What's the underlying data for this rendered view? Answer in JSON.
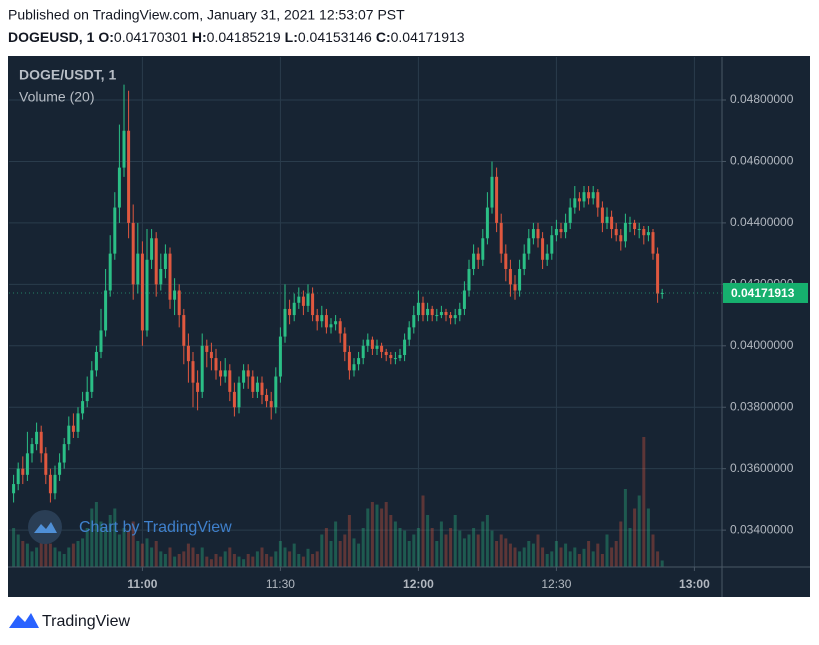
{
  "header": {
    "published": "Published on TradingView.com, January 31, 2021 12:53:07 PST",
    "symbol": "DOGEUSD, 1",
    "open_label": "O:",
    "high_label": "H:",
    "low_label": "L:",
    "close_label": "C:"
  },
  "footer": {
    "brand": "TradingView"
  },
  "chart_data": {
    "type": "candlestick",
    "symbol": "DOGE/USDT, 1",
    "volume_label": "Volume (20)",
    "watermark": "Chart by TradingView",
    "up_color": "#2bbf86",
    "down_color": "#e0583f",
    "grid": true,
    "ylim": [
      0.0328,
      0.0494
    ],
    "yticks": [
      {
        "value": 0.034,
        "label": "0.03400000"
      },
      {
        "value": 0.036,
        "label": "0.03600000"
      },
      {
        "value": 0.038,
        "label": "0.03800000"
      },
      {
        "value": 0.04,
        "label": "0.04000000"
      },
      {
        "value": 0.042,
        "label": "0.04200000"
      },
      {
        "value": 0.044,
        "label": "0.04400000"
      },
      {
        "value": 0.046,
        "label": "0.04600000"
      },
      {
        "value": 0.048,
        "label": "0.04800000"
      }
    ],
    "xlim": [
      "10:31",
      "13:06"
    ],
    "xticks": [
      "11:00",
      "11:30",
      "12:00",
      "12:30",
      "13:00"
    ],
    "x": [
      "10:32",
      "10:33",
      "10:34",
      "10:35",
      "10:36",
      "10:37",
      "10:38",
      "10:39",
      "10:40",
      "10:41",
      "10:42",
      "10:43",
      "10:44",
      "10:45",
      "10:46",
      "10:47",
      "10:48",
      "10:49",
      "10:50",
      "10:51",
      "10:52",
      "10:53",
      "10:54",
      "10:55",
      "10:56",
      "10:57",
      "10:58",
      "10:59",
      "11:00",
      "11:01",
      "11:02",
      "11:03",
      "11:04",
      "11:05",
      "11:06",
      "11:07",
      "11:08",
      "11:09",
      "11:10",
      "11:11",
      "11:12",
      "11:13",
      "11:14",
      "11:15",
      "11:16",
      "11:17",
      "11:18",
      "11:19",
      "11:20",
      "11:21",
      "11:22",
      "11:23",
      "11:24",
      "11:25",
      "11:26",
      "11:27",
      "11:28",
      "11:29",
      "11:30",
      "11:31",
      "11:32",
      "11:33",
      "11:34",
      "11:35",
      "11:36",
      "11:37",
      "11:38",
      "11:39",
      "11:40",
      "11:41",
      "11:42",
      "11:43",
      "11:44",
      "11:45",
      "11:46",
      "11:47",
      "11:48",
      "11:49",
      "11:50",
      "11:51",
      "11:52",
      "11:53",
      "11:54",
      "11:55",
      "11:56",
      "11:57",
      "11:58",
      "11:59",
      "12:00",
      "12:01",
      "12:02",
      "12:03",
      "12:04",
      "12:05",
      "12:06",
      "12:07",
      "12:08",
      "12:09",
      "12:10",
      "12:11",
      "12:12",
      "12:13",
      "12:14",
      "12:15",
      "12:16",
      "12:17",
      "12:18",
      "12:19",
      "12:20",
      "12:21",
      "12:22",
      "12:23",
      "12:24",
      "12:25",
      "12:26",
      "12:27",
      "12:28",
      "12:29",
      "12:30",
      "12:31",
      "12:32",
      "12:33",
      "12:34",
      "12:35",
      "12:36",
      "12:37",
      "12:38",
      "12:39",
      "12:40",
      "12:41",
      "12:42",
      "12:43",
      "12:44",
      "12:45",
      "12:46",
      "12:47",
      "12:48",
      "12:49",
      "12:50",
      "12:51",
      "12:52",
      "12:53"
    ],
    "open": [
      0.0352,
      0.0355,
      0.036,
      0.0358,
      0.0365,
      0.0368,
      0.0372,
      0.0365,
      0.0358,
      0.0352,
      0.0358,
      0.0362,
      0.0368,
      0.0374,
      0.0372,
      0.0378,
      0.0382,
      0.0385,
      0.0392,
      0.0398,
      0.0405,
      0.0418,
      0.043,
      0.0445,
      0.0458,
      0.047,
      0.044,
      0.042,
      0.043,
      0.0405,
      0.0428,
      0.0435,
      0.042,
      0.0425,
      0.043,
      0.0415,
      0.0418,
      0.041,
      0.04,
      0.0395,
      0.0388,
      0.0385,
      0.04,
      0.0398,
      0.0396,
      0.0392,
      0.039,
      0.0392,
      0.0385,
      0.038,
      0.0388,
      0.0392,
      0.039,
      0.0385,
      0.0388,
      0.0384,
      0.0382,
      0.038,
      0.039,
      0.0403,
      0.0412,
      0.041,
      0.0414,
      0.0416,
      0.0413,
      0.0417,
      0.041,
      0.0408,
      0.041,
      0.0406,
      0.0407,
      0.0408,
      0.0404,
      0.0398,
      0.0392,
      0.0394,
      0.0396,
      0.04,
      0.0402,
      0.0399,
      0.04,
      0.0398,
      0.0397,
      0.0396,
      0.0396,
      0.0397,
      0.0402,
      0.0406,
      0.041,
      0.0414,
      0.041,
      0.0412,
      0.041,
      0.041,
      0.0411,
      0.041,
      0.0409,
      0.041,
      0.0412,
      0.0418,
      0.0425,
      0.043,
      0.0428,
      0.0435,
      0.0445,
      0.0455,
      0.044,
      0.043,
      0.0425,
      0.042,
      0.0418,
      0.0425,
      0.043,
      0.0435,
      0.0438,
      0.0435,
      0.0428,
      0.043,
      0.0436,
      0.0438,
      0.0437,
      0.044,
      0.0445,
      0.0448,
      0.0447,
      0.045,
      0.0448,
      0.045,
      0.0445,
      0.044,
      0.0442,
      0.0438,
      0.0436,
      0.0434,
      0.044,
      0.044,
      0.0438,
      0.0438,
      0.0436,
      0.0437,
      0.043,
      0.04170301
    ],
    "high": [
      0.0358,
      0.0362,
      0.0364,
      0.0372,
      0.037,
      0.0375,
      0.0374,
      0.0367,
      0.036,
      0.0361,
      0.0365,
      0.037,
      0.0377,
      0.0378,
      0.038,
      0.0385,
      0.039,
      0.0395,
      0.04,
      0.0412,
      0.0425,
      0.0436,
      0.045,
      0.0472,
      0.0485,
      0.0483,
      0.0446,
      0.044,
      0.0434,
      0.0438,
      0.0438,
      0.0437,
      0.043,
      0.0433,
      0.0432,
      0.0422,
      0.042,
      0.0412,
      0.0404,
      0.0398,
      0.0392,
      0.0404,
      0.0402,
      0.0401,
      0.0399,
      0.0395,
      0.0396,
      0.0394,
      0.0388,
      0.039,
      0.0394,
      0.0394,
      0.0392,
      0.039,
      0.039,
      0.0386,
      0.0385,
      0.0393,
      0.0406,
      0.042,
      0.0415,
      0.0417,
      0.0419,
      0.0418,
      0.042,
      0.0419,
      0.0412,
      0.0413,
      0.0412,
      0.0409,
      0.041,
      0.0409,
      0.0406,
      0.04,
      0.0396,
      0.0398,
      0.0402,
      0.0404,
      0.0403,
      0.0402,
      0.0401,
      0.0399,
      0.0398,
      0.0398,
      0.0399,
      0.0404,
      0.0408,
      0.0413,
      0.0418,
      0.0416,
      0.0414,
      0.0413,
      0.0412,
      0.0413,
      0.0412,
      0.0411,
      0.0412,
      0.0414,
      0.0421,
      0.0428,
      0.0433,
      0.0432,
      0.0438,
      0.045,
      0.046,
      0.0458,
      0.0443,
      0.0433,
      0.0428,
      0.0423,
      0.0428,
      0.0433,
      0.0438,
      0.044,
      0.044,
      0.0437,
      0.0433,
      0.0439,
      0.0441,
      0.044,
      0.0443,
      0.0448,
      0.0452,
      0.045,
      0.0452,
      0.0452,
      0.0452,
      0.0451,
      0.0447,
      0.0445,
      0.0444,
      0.044,
      0.0438,
      0.0443,
      0.0442,
      0.0441,
      0.044,
      0.0439,
      0.0439,
      0.0438,
      0.0432,
      0.04185219
    ],
    "low": [
      0.0349,
      0.0353,
      0.0355,
      0.0356,
      0.0362,
      0.0366,
      0.0362,
      0.0355,
      0.0349,
      0.035,
      0.0356,
      0.036,
      0.0366,
      0.037,
      0.037,
      0.0376,
      0.038,
      0.0383,
      0.039,
      0.0396,
      0.0403,
      0.0416,
      0.0428,
      0.044,
      0.0455,
      0.0435,
      0.0415,
      0.0417,
      0.04,
      0.0403,
      0.0425,
      0.0416,
      0.0418,
      0.0422,
      0.0412,
      0.041,
      0.0406,
      0.0394,
      0.0388,
      0.038,
      0.0379,
      0.0383,
      0.0393,
      0.0392,
      0.0389,
      0.0387,
      0.0388,
      0.0382,
      0.0377,
      0.0378,
      0.0386,
      0.0386,
      0.0383,
      0.0383,
      0.0381,
      0.038,
      0.0376,
      0.0378,
      0.0388,
      0.0401,
      0.0407,
      0.0408,
      0.0412,
      0.041,
      0.0411,
      0.0408,
      0.0405,
      0.0406,
      0.0404,
      0.0404,
      0.0405,
      0.0401,
      0.0395,
      0.0389,
      0.039,
      0.0392,
      0.0394,
      0.0398,
      0.0397,
      0.0397,
      0.0396,
      0.0395,
      0.0394,
      0.0394,
      0.0395,
      0.0395,
      0.04,
      0.0404,
      0.0408,
      0.0408,
      0.0408,
      0.0408,
      0.0408,
      0.0409,
      0.0408,
      0.0407,
      0.0407,
      0.0408,
      0.041,
      0.0416,
      0.0423,
      0.0425,
      0.0426,
      0.0433,
      0.0443,
      0.0437,
      0.0427,
      0.0421,
      0.0416,
      0.0415,
      0.0416,
      0.0423,
      0.0428,
      0.0433,
      0.0432,
      0.0425,
      0.0426,
      0.0428,
      0.0434,
      0.0435,
      0.0435,
      0.0438,
      0.0443,
      0.0444,
      0.0445,
      0.0446,
      0.0446,
      0.0442,
      0.0437,
      0.0438,
      0.0435,
      0.0434,
      0.0431,
      0.0432,
      0.0437,
      0.0436,
      0.0435,
      0.0433,
      0.0434,
      0.0428,
      0.0414,
      0.04153146
    ],
    "close": [
      0.0355,
      0.036,
      0.0358,
      0.0365,
      0.0368,
      0.0372,
      0.0365,
      0.0358,
      0.0352,
      0.0358,
      0.0362,
      0.0368,
      0.0374,
      0.0372,
      0.0378,
      0.0382,
      0.0385,
      0.0392,
      0.0398,
      0.0405,
      0.0418,
      0.043,
      0.0445,
      0.0458,
      0.047,
      0.044,
      0.042,
      0.043,
      0.0405,
      0.0428,
      0.0435,
      0.042,
      0.0425,
      0.043,
      0.0415,
      0.0418,
      0.041,
      0.04,
      0.0395,
      0.0388,
      0.0385,
      0.04,
      0.0398,
      0.0396,
      0.0392,
      0.039,
      0.0392,
      0.0385,
      0.038,
      0.0388,
      0.0392,
      0.039,
      0.0385,
      0.0388,
      0.0384,
      0.0382,
      0.038,
      0.039,
      0.0403,
      0.0412,
      0.041,
      0.0414,
      0.0416,
      0.0413,
      0.0417,
      0.041,
      0.0408,
      0.041,
      0.0406,
      0.0407,
      0.0408,
      0.0404,
      0.0398,
      0.0392,
      0.0394,
      0.0396,
      0.04,
      0.0402,
      0.0399,
      0.04,
      0.0398,
      0.0397,
      0.0396,
      0.0396,
      0.0397,
      0.0402,
      0.0406,
      0.041,
      0.0414,
      0.041,
      0.0412,
      0.041,
      0.041,
      0.0411,
      0.041,
      0.0409,
      0.041,
      0.0412,
      0.0418,
      0.0425,
      0.043,
      0.0428,
      0.0435,
      0.0445,
      0.0455,
      0.044,
      0.043,
      0.0425,
      0.042,
      0.0418,
      0.0425,
      0.043,
      0.0435,
      0.0438,
      0.0435,
      0.0428,
      0.043,
      0.0436,
      0.0438,
      0.0437,
      0.044,
      0.0445,
      0.0448,
      0.0447,
      0.045,
      0.0448,
      0.045,
      0.0445,
      0.044,
      0.0442,
      0.0438,
      0.0436,
      0.0434,
      0.044,
      0.044,
      0.0438,
      0.0438,
      0.0436,
      0.0437,
      0.043,
      0.0417,
      0.04171913
    ],
    "volume": [
      30,
      25,
      20,
      18,
      12,
      15,
      20,
      25,
      18,
      15,
      12,
      10,
      15,
      18,
      20,
      22,
      30,
      45,
      50,
      35,
      30,
      40,
      45,
      25,
      30,
      28,
      35,
      20,
      18,
      22,
      15,
      20,
      12,
      10,
      15,
      8,
      10,
      12,
      18,
      15,
      10,
      15,
      8,
      6,
      10,
      8,
      12,
      15,
      10,
      8,
      6,
      10,
      8,
      12,
      15,
      10,
      8,
      12,
      20,
      15,
      12,
      18,
      10,
      8,
      14,
      10,
      12,
      25,
      30,
      20,
      35,
      20,
      25,
      40,
      22,
      18,
      30,
      45,
      50,
      48,
      45,
      50,
      40,
      35,
      30,
      28,
      20,
      25,
      30,
      55,
      40,
      30,
      20,
      35,
      25,
      30,
      40,
      28,
      22,
      25,
      30,
      25,
      35,
      40,
      28,
      20,
      25,
      22,
      18,
      15,
      12,
      15,
      20,
      18,
      25,
      15,
      10,
      12,
      20,
      15,
      18,
      12,
      15,
      10,
      14,
      20,
      12,
      18,
      10,
      25,
      15,
      20,
      35,
      60,
      30,
      45,
      55,
      100,
      45,
      25,
      12,
      5
    ]
  }
}
